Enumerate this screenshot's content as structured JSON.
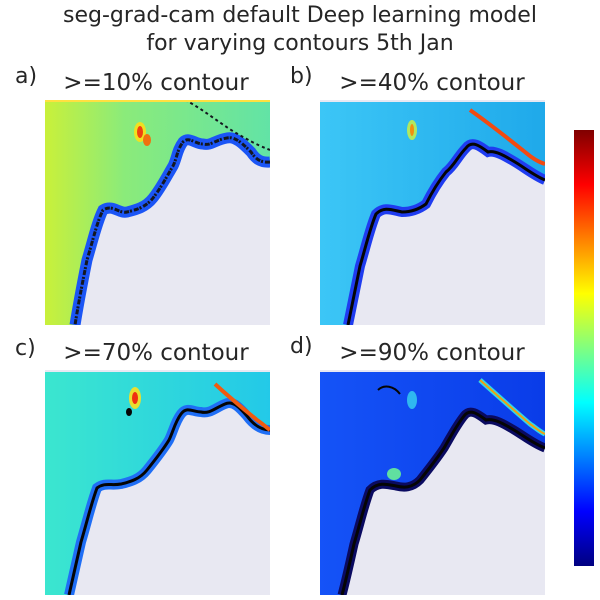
{
  "title_line1": "seg-grad-cam default Deep learning model",
  "title_line2": "for varying contours 5th Jan",
  "panels": [
    {
      "letter": "a)",
      "title": ">=10% contour",
      "base": "#6fe79a",
      "left": "#c9f03a",
      "coastline": "#14171f"
    },
    {
      "letter": "b)",
      "title": ">=40% contour",
      "base": "#1fb1ec",
      "left": "#3cc6f6",
      "coastline": "#050505"
    },
    {
      "letter": "c)",
      "title": ">=70% contour",
      "base": "#2fd6dc",
      "left": "#3be6cf",
      "coastline": "#050505"
    },
    {
      "letter": "d)",
      "title": ">=90% contour",
      "base": "#0c42f1",
      "left": "#1553f7",
      "coastline": "#050505"
    }
  ],
  "colorbar": {
    "colormap": "jet",
    "colors": [
      "#000080",
      "#0000ff",
      "#0080ff",
      "#00ffff",
      "#80ff80",
      "#ffff00",
      "#ff8000",
      "#ff0000",
      "#800000"
    ]
  },
  "colors": {
    "land": "#e8e8f2",
    "background": "#ffffff",
    "text": "#262626"
  }
}
